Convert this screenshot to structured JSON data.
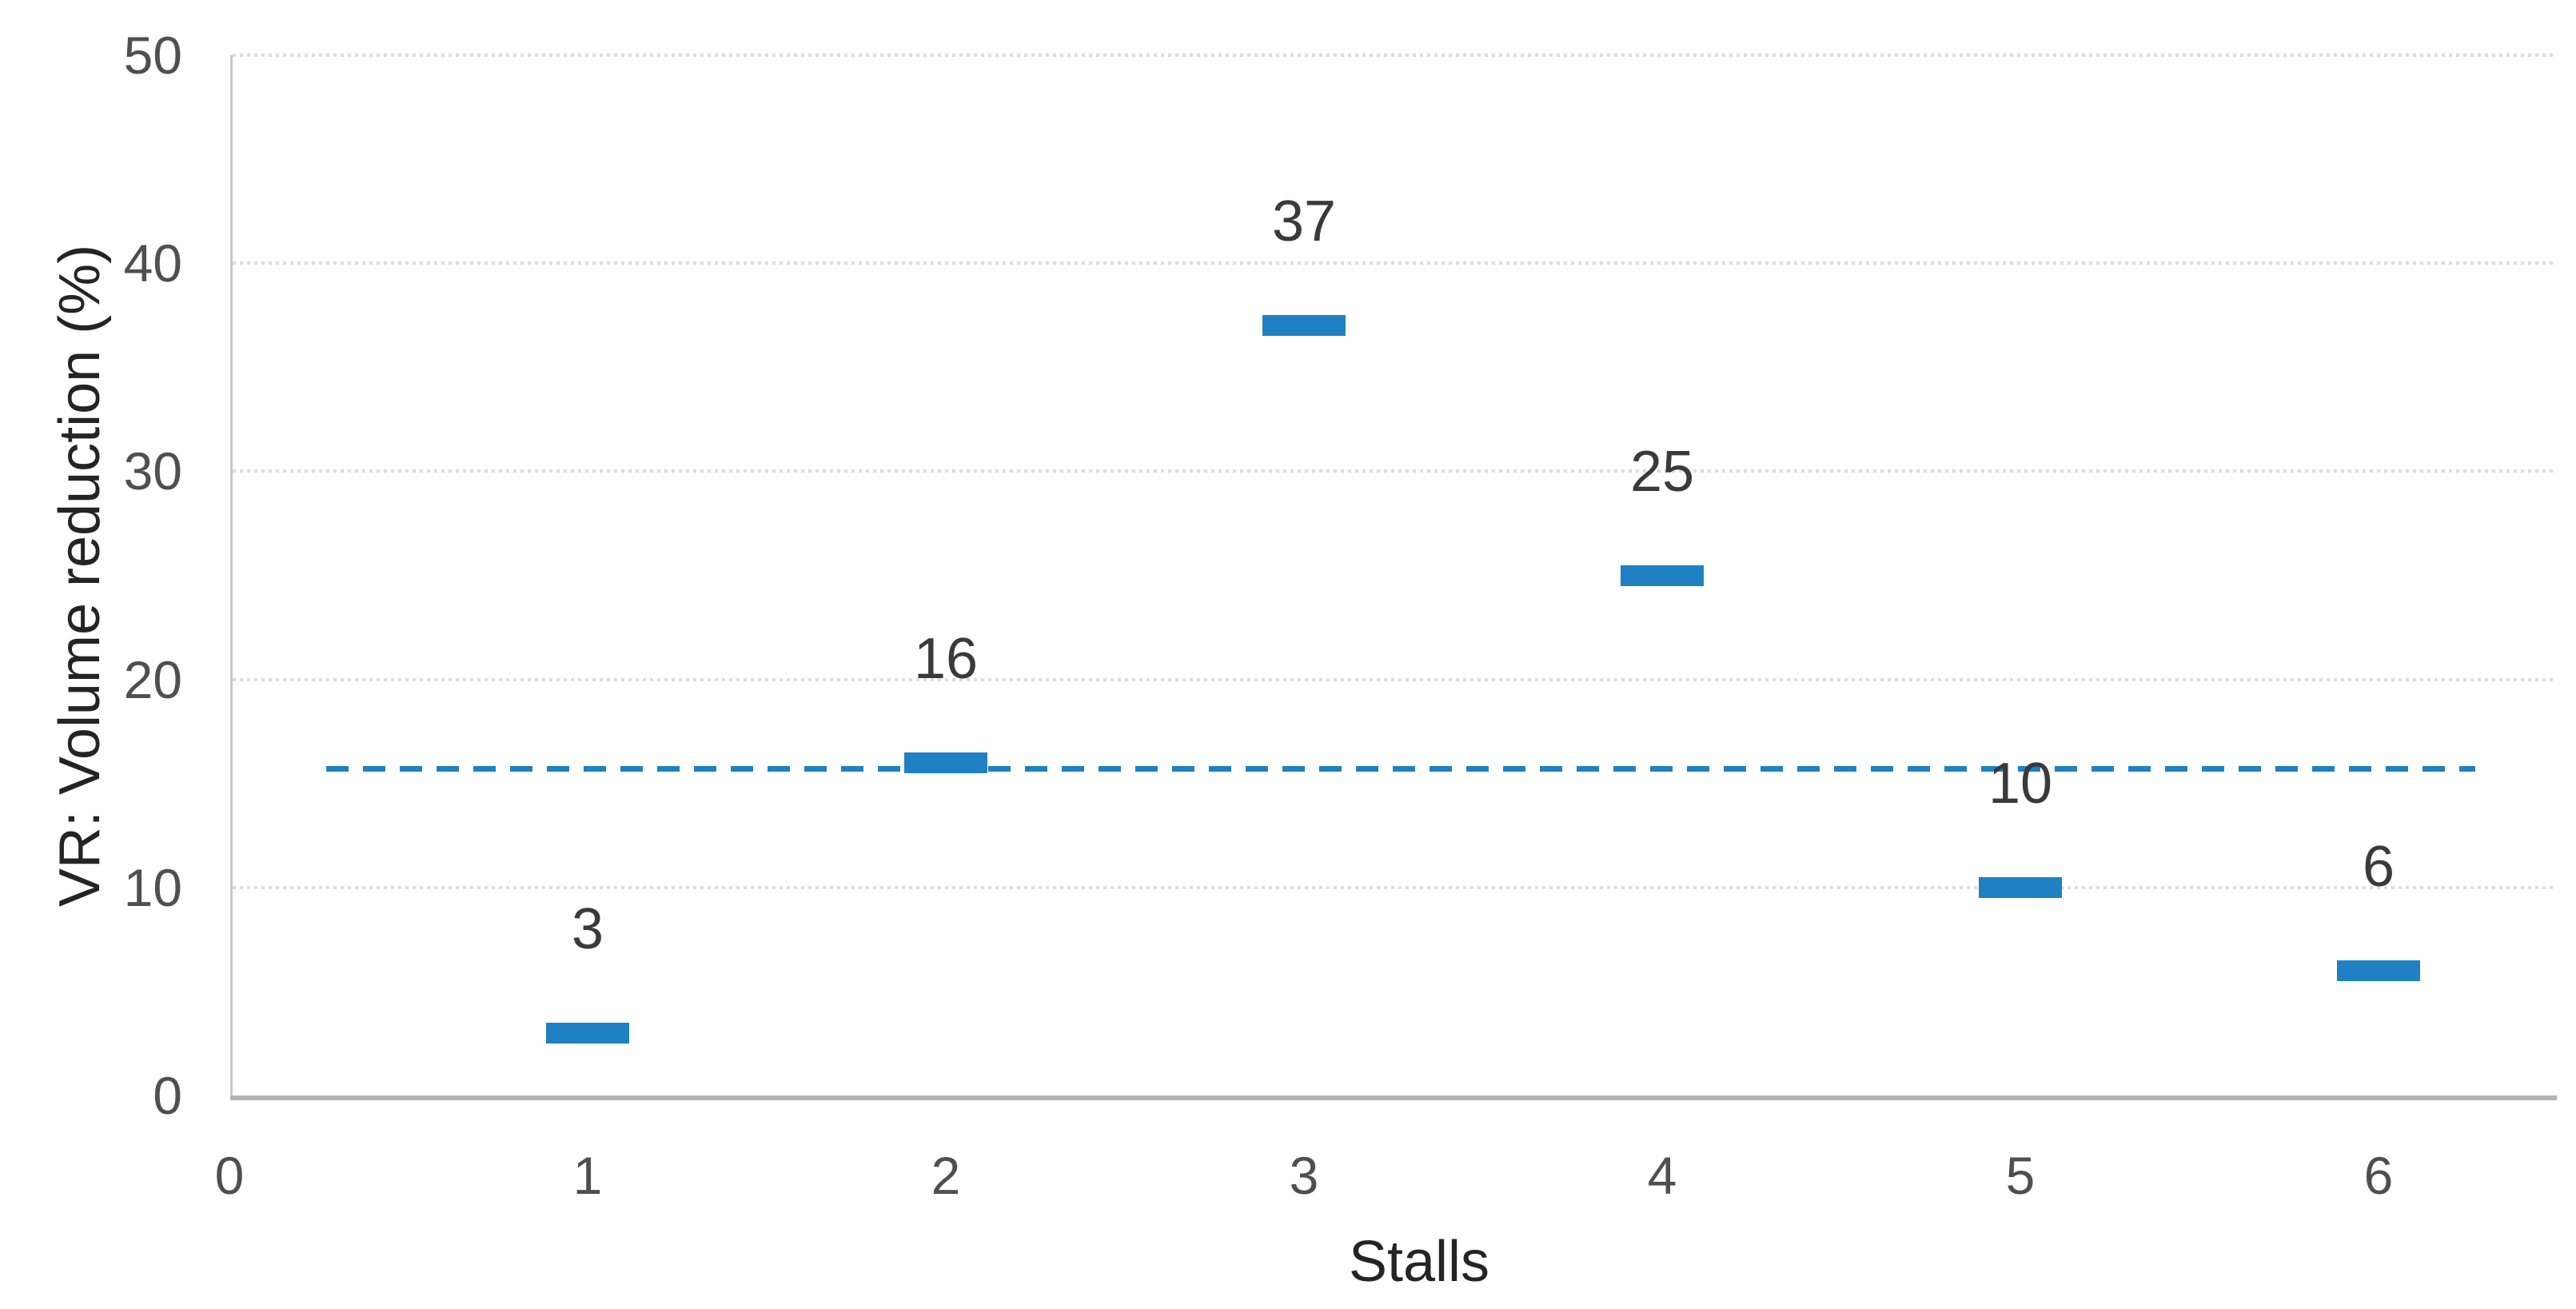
{
  "chart_data": {
    "type": "scatter",
    "title": "",
    "xlabel": "Stalls",
    "ylabel": "VR: Volume reduction (%)",
    "xlim": [
      0,
      6.5
    ],
    "ylim": [
      0,
      50
    ],
    "x_ticks": [
      "0",
      "1",
      "2",
      "3",
      "4",
      "5",
      "6"
    ],
    "y_ticks": [
      "0",
      "10",
      "20",
      "30",
      "40",
      "50"
    ],
    "grid": "horizontal-dotted",
    "legend": "none",
    "series": [
      {
        "name": "volume-reduction-by-stall",
        "marker": "horizontal-dash",
        "x": [
          1,
          2,
          3,
          4,
          5,
          6
        ],
        "y": [
          3,
          16,
          37,
          25,
          10,
          6
        ],
        "data_labels": [
          "3",
          "16",
          "37",
          "25",
          "10",
          "6"
        ],
        "label_position": "above"
      }
    ],
    "reference_line": {
      "style": "dashed",
      "value": 15.7,
      "x_start": 0.27,
      "x_end": 6.27
    },
    "colors": {
      "marker": "#1f81c3",
      "reference_line": "#1f81c3",
      "gridline": "#dcdcdc",
      "y_axis_line": "#c8c8c8",
      "x_axis_line": "#b3b3b3",
      "tick_label": "#4f4f4f",
      "data_label": "#3a3a3a",
      "axis_title": "#242424"
    }
  }
}
